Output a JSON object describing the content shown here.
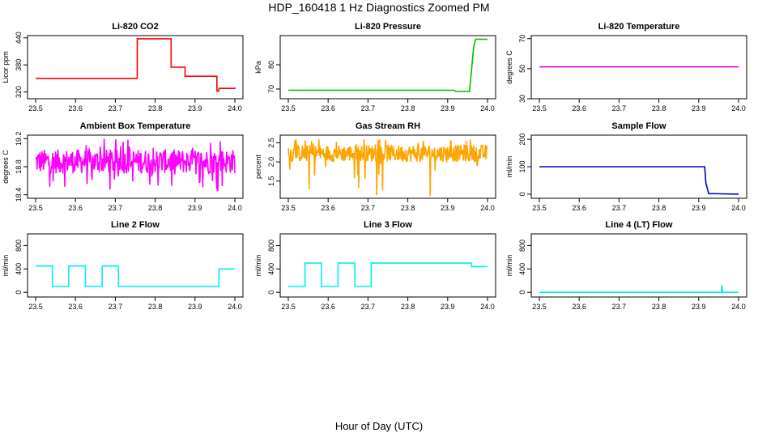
{
  "figure": {
    "title": "HDP_160418  1 Hz Diagnostics Zoomed PM",
    "xlabel": "Hour of Day (UTC)"
  },
  "chart_data": [
    {
      "type": "line",
      "title": "Li-820 CO2",
      "ylabel": "Licor ppm",
      "color": "#ff0000",
      "xlim": [
        23.5,
        24.0
      ],
      "ylim": [
        305,
        445
      ],
      "xticks": [
        "23.5",
        "23.6",
        "23.7",
        "23.8",
        "23.9",
        "24.0"
      ],
      "yticks": [
        "320",
        "380",
        "440"
      ],
      "series": [
        {
          "mode": "step",
          "x": [
            23.5,
            23.75,
            23.755,
            23.84,
            23.875,
            23.955,
            23.96,
            24.0
          ],
          "y": [
            350,
            350,
            438,
            375,
            355,
            322,
            328,
            330
          ]
        }
      ]
    },
    {
      "type": "line",
      "title": "Li-820 Pressure",
      "ylabel": "kPa",
      "color": "#00bb00",
      "xlim": [
        23.5,
        24.0
      ],
      "ylim": [
        66,
        92
      ],
      "xticks": [
        "23.5",
        "23.6",
        "23.7",
        "23.8",
        "23.9",
        "24.0"
      ],
      "yticks": [
        "70",
        "80"
      ],
      "series": [
        {
          "mode": "line",
          "x": [
            23.5,
            23.915,
            23.92,
            23.955,
            23.96,
            23.965,
            23.97,
            24.0
          ],
          "y": [
            69.5,
            69.5,
            69,
            69,
            78,
            87,
            90.5,
            90.5
          ]
        }
      ]
    },
    {
      "type": "line",
      "title": "Li-820 Temperature",
      "ylabel": "degrees C",
      "color": "#cc00cc",
      "xlim": [
        23.5,
        24.0
      ],
      "ylim": [
        30,
        72
      ],
      "xticks": [
        "23.5",
        "23.6",
        "23.7",
        "23.8",
        "23.9",
        "24.0"
      ],
      "yticks": [
        "30",
        "50",
        "70"
      ],
      "series": [
        {
          "mode": "line",
          "x": [
            23.5,
            24.0
          ],
          "y": [
            51.2,
            51.2
          ]
        }
      ]
    },
    {
      "type": "line",
      "title": "Ambient Box Temperature",
      "ylabel": "degrees C",
      "color": "#ff00ff",
      "xlim": [
        23.5,
        24.0
      ],
      "ylim": [
        18.35,
        19.25
      ],
      "xticks": [
        "23.5",
        "23.6",
        "23.7",
        "23.8",
        "23.9",
        "24.0"
      ],
      "yticks": [
        "18.4",
        "18.8",
        "19.2"
      ],
      "series": [
        {
          "mode": "noise",
          "x": [
            23.5,
            24.0
          ],
          "center": 18.9,
          "low": 18.7,
          "high": 19.05,
          "min": 18.45,
          "max": 19.2
        }
      ]
    },
    {
      "type": "line",
      "title": "Gas Stream RH",
      "ylabel": "percent",
      "color": "#ffa500",
      "xlim": [
        23.5,
        24.0
      ],
      "ylim": [
        1.05,
        2.7
      ],
      "xticks": [
        "23.5",
        "23.6",
        "23.7",
        "23.8",
        "23.9",
        "24.0"
      ],
      "yticks": [
        "1.5",
        "2.0",
        "2.5"
      ],
      "series": [
        {
          "mode": "noise",
          "x": [
            23.5,
            24.0
          ],
          "center": 2.2,
          "low": 2.0,
          "high": 2.45,
          "min": 1.1,
          "max": 2.6
        }
      ]
    },
    {
      "type": "line",
      "title": "Sample Flow",
      "ylabel": "ml/min",
      "color": "#0000cc",
      "xlim": [
        23.5,
        24.0
      ],
      "ylim": [
        -15,
        215
      ],
      "xticks": [
        "23.5",
        "23.6",
        "23.7",
        "23.8",
        "23.9",
        "24.0"
      ],
      "yticks": [
        "0",
        "100",
        "200"
      ],
      "series": [
        {
          "mode": "line",
          "x": [
            23.5,
            23.915,
            23.918,
            23.925,
            24.0
          ],
          "y": [
            100,
            100,
            40,
            2,
            0
          ]
        }
      ]
    },
    {
      "type": "line",
      "title": "Line 2 Flow",
      "ylabel": "ml/min",
      "color": "#00eeee",
      "xlim": [
        23.5,
        24.0
      ],
      "ylim": [
        -80,
        1000
      ],
      "xticks": [
        "23.5",
        "23.6",
        "23.7",
        "23.8",
        "23.9",
        "24.0"
      ],
      "yticks": [
        "0",
        "400",
        "800"
      ],
      "series": [
        {
          "mode": "step",
          "x": [
            23.5,
            23.542,
            23.583,
            23.625,
            23.667,
            23.708,
            23.96,
            24.0
          ],
          "y": [
            450,
            100,
            450,
            100,
            450,
            100,
            400,
            400
          ]
        }
      ]
    },
    {
      "type": "line",
      "title": "Line 3 Flow",
      "ylabel": "ml/min",
      "color": "#00eeee",
      "xlim": [
        23.5,
        24.0
      ],
      "ylim": [
        -80,
        1000
      ],
      "xticks": [
        "23.5",
        "23.6",
        "23.7",
        "23.8",
        "23.9",
        "24.0"
      ],
      "yticks": [
        "0",
        "400",
        "800"
      ],
      "series": [
        {
          "mode": "step",
          "x": [
            23.5,
            23.542,
            23.583,
            23.625,
            23.667,
            23.708,
            23.96,
            24.0
          ],
          "y": [
            100,
            500,
            100,
            500,
            100,
            500,
            440,
            440
          ]
        }
      ]
    },
    {
      "type": "line",
      "title": "Line 4 (LT) Flow",
      "ylabel": "ml/min",
      "color": "#00eeee",
      "xlim": [
        23.5,
        24.0
      ],
      "ylim": [
        -80,
        1000
      ],
      "xticks": [
        "23.5",
        "23.6",
        "23.7",
        "23.8",
        "23.9",
        "24.0"
      ],
      "yticks": [
        "0",
        "400",
        "800"
      ],
      "series": [
        {
          "mode": "line",
          "x": [
            23.5,
            23.957,
            23.958,
            23.96,
            23.962,
            24.0
          ],
          "y": [
            0,
            0,
            120,
            0,
            0,
            0
          ]
        }
      ]
    }
  ]
}
